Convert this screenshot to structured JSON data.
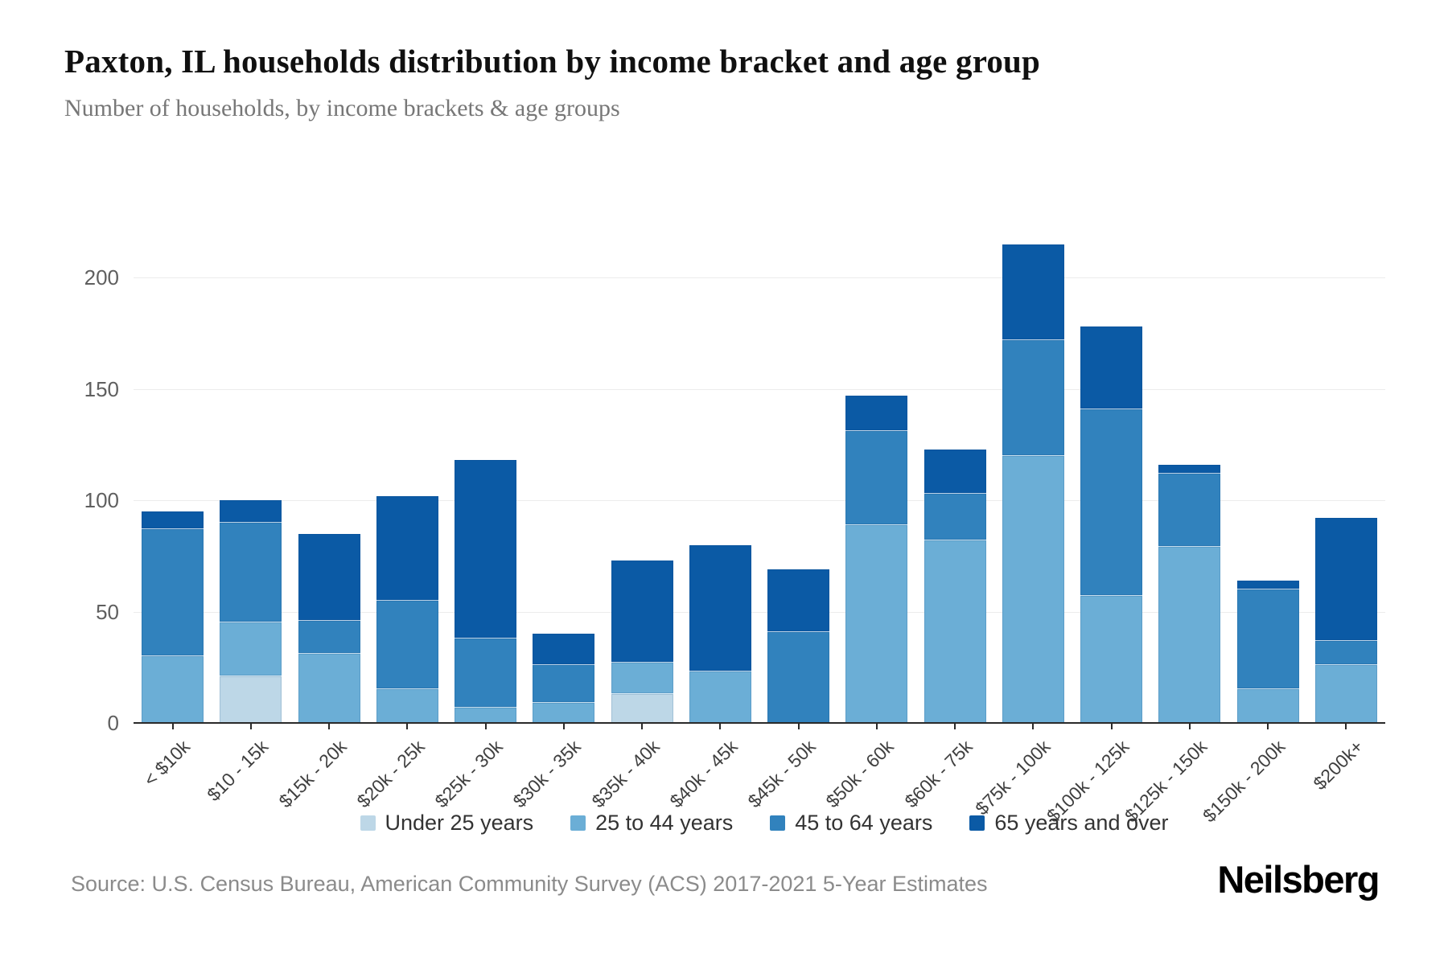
{
  "header": {
    "title": "Paxton, IL households distribution by income bracket and age group",
    "subtitle": "Number of households, by income brackets & age groups"
  },
  "footer": {
    "source": "Source: U.S. Census Bureau, American Community Survey (ACS) 2017-2021 5-Year Estimates",
    "brand": "Neilsberg"
  },
  "chart_data": {
    "type": "bar",
    "stacked": true,
    "title": "Paxton, IL households distribution by income bracket and age group",
    "subtitle": "Number of households, by income brackets & age groups",
    "xlabel": "",
    "ylabel": "",
    "ylim": [
      0,
      225
    ],
    "yticks": [
      0,
      50,
      100,
      150,
      200
    ],
    "grid": true,
    "legend_position": "bottom",
    "categories": [
      "< $10k",
      "$10 - 15k",
      "$15k - 20k",
      "$20k - 25k",
      "$25k - 30k",
      "$30k - 35k",
      "$35k - 40k",
      "$40k - 45k",
      "$45k - 50k",
      "$50k - 60k",
      "$60k - 75k",
      "$75k - 100k",
      "$100k - 125k",
      "$125k - 150k",
      "$150k - 200k",
      "$200k+"
    ],
    "series": [
      {
        "name": "Under 25 years",
        "color": "#bdd7e7",
        "values": [
          0,
          21,
          0,
          0,
          0,
          0,
          13,
          0,
          0,
          0,
          0,
          0,
          0,
          0,
          0,
          0
        ]
      },
      {
        "name": "25 to 44 years",
        "color": "#6baed6",
        "values": [
          30,
          24,
          31,
          15,
          7,
          9,
          14,
          23,
          0,
          89,
          82,
          120,
          57,
          79,
          15,
          26
        ]
      },
      {
        "name": "45 to 64 years",
        "color": "#3182bd",
        "values": [
          57,
          45,
          15,
          40,
          31,
          17,
          0,
          0,
          41,
          42,
          21,
          52,
          84,
          33,
          45,
          11
        ]
      },
      {
        "name": "65 years and over",
        "color": "#0b5aa5",
        "values": [
          8,
          10,
          39,
          47,
          80,
          14,
          46,
          57,
          28,
          16,
          20,
          43,
          37,
          4,
          4,
          55
        ]
      }
    ],
    "totals": [
      95,
      100,
      85,
      102,
      118,
      40,
      73,
      80,
      69,
      147,
      123,
      215,
      178,
      116,
      64,
      92
    ]
  }
}
